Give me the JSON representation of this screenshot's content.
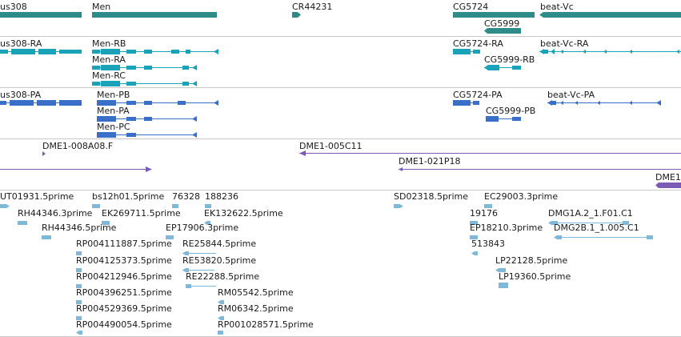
{
  "colors": {
    "gene": "#2e8b87",
    "rna": "#1aa3b8",
    "protein": "#3a6fc9",
    "clone": "#7b5bb5",
    "est": "#7fb8d8",
    "separator": "#c9c9c9"
  },
  "tracks": {
    "genes": {
      "labels": [
        "us308",
        "Men",
        "CR44231",
        "CG5724",
        "beat-Vc",
        "CG5999"
      ]
    },
    "transcripts": {
      "labels": [
        "us308-RA",
        "Men-RB",
        "Men-RA",
        "Men-RC",
        "CG5724-RA",
        "beat-Vc-RA",
        "CG5999-RB"
      ]
    },
    "proteins": {
      "labels": [
        "us308-PA",
        "Men-PB",
        "Men-PA",
        "Men-PC",
        "CG5724-PA",
        "beat-Vc-PA",
        "CG5999-PB"
      ]
    },
    "clones": {
      "labels": [
        "DME1-008A08.F",
        "DME1-005C11",
        "DME1-021P18",
        "DME1"
      ]
    },
    "ests": {
      "labels": [
        "UT01931.5prime",
        "bs12h01.5prime",
        "76328",
        "188236",
        "SD02318.5prime",
        "EC29003.3prime",
        "RH44346.3prime",
        "EK269711.5prime",
        "EK132622.5prime",
        "19176",
        "DMG1A.2_1.F01.C1",
        "RH44346.5prime",
        "EP17906.3prime",
        "EP18210.3prime",
        "DMG2B.1_1.005.C1",
        "RP004111887.5prime",
        "RE25844.5prime",
        "513843",
        "RP004125373.5prime",
        "RE53820.5prime",
        "LP22128.5prime",
        "RP004212946.5prime",
        "RE22288.5prime",
        "LP19360.5prime",
        "RP004396251.5prime",
        "RM05542.5prime",
        "RP004529369.5prime",
        "RM06342.5prime",
        "RP004490054.5prime",
        "RP001028571.5prime"
      ]
    }
  }
}
